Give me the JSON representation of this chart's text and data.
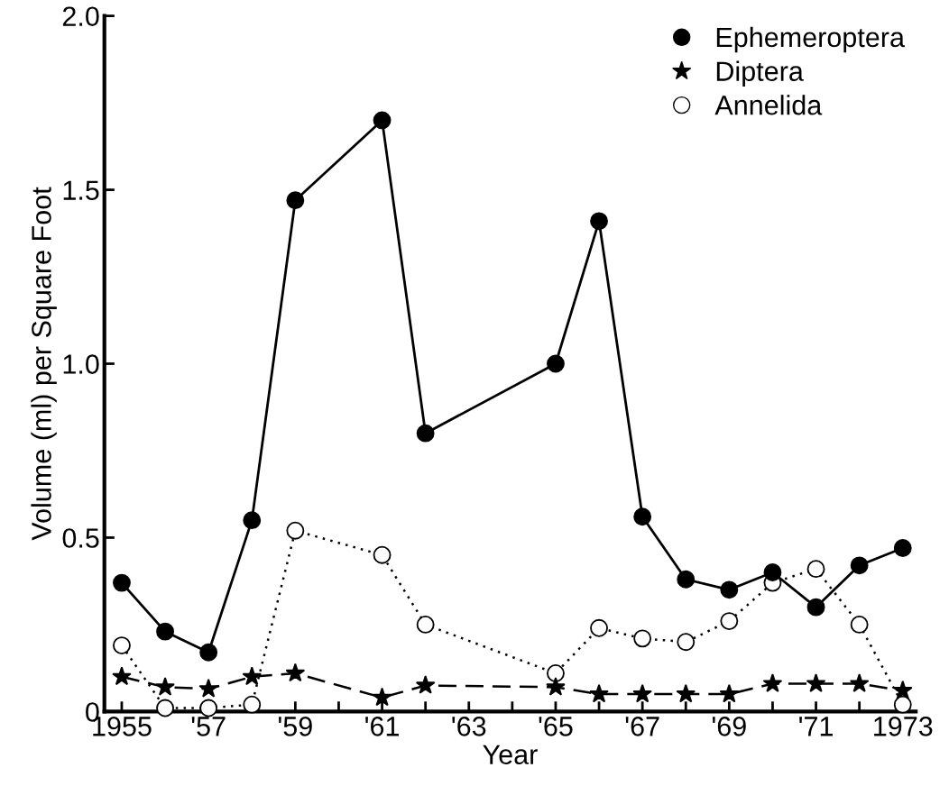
{
  "chart_data": {
    "type": "line",
    "xlabel": "Year",
    "ylabel": "Volume (ml) per Square Foot",
    "xlim": [
      1954.6,
      1973.3
    ],
    "ylim": [
      0,
      2.0
    ],
    "xticks": [
      {
        "value": 1955,
        "label": "1955"
      },
      {
        "value": 1956,
        "label": null
      },
      {
        "value": 1957,
        "label": "'57"
      },
      {
        "value": 1958,
        "label": null
      },
      {
        "value": 1959,
        "label": "'59"
      },
      {
        "value": 1960,
        "label": null
      },
      {
        "value": 1961,
        "label": "'61"
      },
      {
        "value": 1962,
        "label": null
      },
      {
        "value": 1963,
        "label": "'63"
      },
      {
        "value": 1964,
        "label": null
      },
      {
        "value": 1965,
        "label": "'65"
      },
      {
        "value": 1966,
        "label": null
      },
      {
        "value": 1967,
        "label": "'67"
      },
      {
        "value": 1968,
        "label": null
      },
      {
        "value": 1969,
        "label": "'69"
      },
      {
        "value": 1970,
        "label": null
      },
      {
        "value": 1971,
        "label": "'71"
      },
      {
        "value": 1972,
        "label": null
      },
      {
        "value": 1973,
        "label": "1973"
      }
    ],
    "yticks": [
      0,
      {
        "value": 0.5,
        "label": "0.5"
      },
      {
        "value": 1.0,
        "label": "1.0"
      },
      {
        "value": 1.5,
        "label": "1.5"
      },
      {
        "value": 2.0,
        "label": "2.0"
      }
    ],
    "grid": false,
    "legend": "top right",
    "series": [
      {
        "name": "Ephemeroptera",
        "color": "#000000",
        "marker": "circle",
        "line_style": "solid",
        "x": [
          1955,
          1956,
          1957,
          1958,
          1959,
          1961,
          1962,
          1965,
          1966,
          1967,
          1968,
          1969,
          1970,
          1971,
          1972,
          1973
        ],
        "values": [
          0.37,
          0.23,
          0.17,
          0.55,
          1.47,
          1.7,
          0.8,
          1.0,
          1.41,
          0.56,
          0.38,
          0.35,
          0.4,
          0.3,
          0.42,
          0.47
        ]
      },
      {
        "name": "Diptera",
        "color": "#000000",
        "marker": "star",
        "line_style": "dashed",
        "x": [
          1955,
          1956,
          1957,
          1958,
          1959,
          1961,
          1962,
          1965,
          1966,
          1967,
          1968,
          1969,
          1970,
          1971,
          1972,
          1973
        ],
        "values": [
          0.1,
          0.07,
          0.065,
          0.1,
          0.11,
          0.04,
          0.075,
          0.07,
          0.05,
          0.05,
          0.05,
          0.05,
          0.08,
          0.08,
          0.08,
          0.06
        ]
      },
      {
        "name": "Annelida",
        "color": "#000000",
        "marker": "open circle",
        "line_style": "dotted",
        "x": [
          1955,
          1956,
          1957,
          1958,
          1959,
          1961,
          1962,
          1965,
          1966,
          1967,
          1968,
          1969,
          1970,
          1971,
          1972,
          1973
        ],
        "values": [
          0.19,
          0.01,
          0.01,
          0.02,
          0.52,
          0.45,
          0.25,
          0.11,
          0.24,
          0.21,
          0.2,
          0.26,
          0.37,
          0.41,
          0.25,
          0.02
        ]
      }
    ]
  }
}
